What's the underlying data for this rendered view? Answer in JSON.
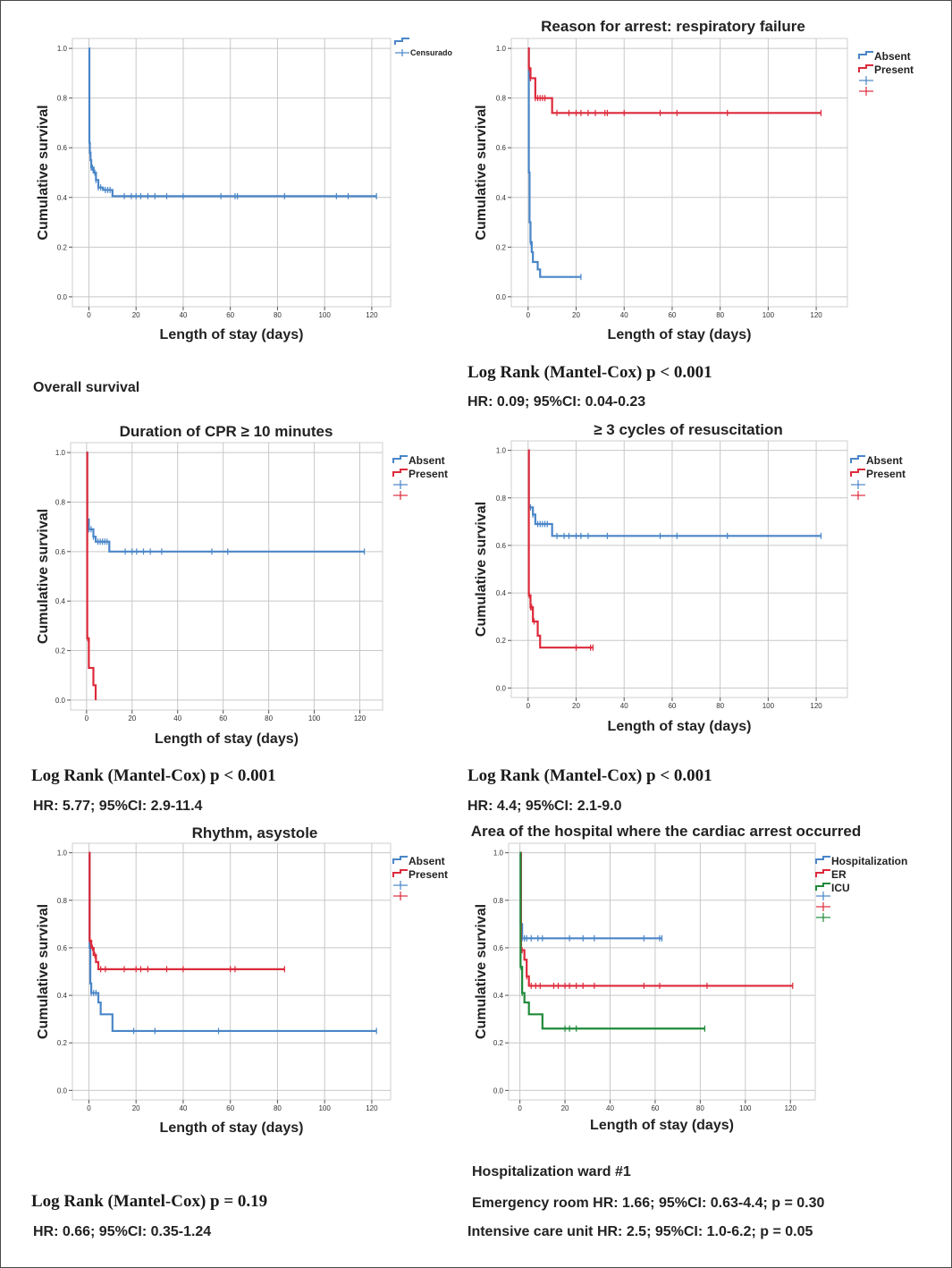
{
  "common": {
    "xlabel": "Length of stay (days)",
    "ylabel": "Cumulative survival",
    "colors": {
      "blue": "#4a86c8",
      "red": "#dd2a3b",
      "green": "#1f8a3a",
      "grid": "#c8c8c8",
      "axis": "#555555"
    }
  },
  "chart_data": [
    {
      "type": "line",
      "title": "",
      "xlabel": "Length of stay (days)",
      "ylabel": "Cumulative survival",
      "xlim": [
        -7,
        128
      ],
      "ylim": [
        -0.04,
        1.04
      ],
      "xticks": [
        "0",
        "20",
        "40",
        "60",
        "80",
        "100",
        "120"
      ],
      "yticks": [
        "0.0",
        "0.2",
        "0.4",
        "0.6",
        "0.8",
        "1.0"
      ],
      "legend": [
        "Censurado"
      ],
      "series": [
        {
          "name": "Overall",
          "color": "#4a86c8",
          "steps": [
            [
              0,
              1.0
            ],
            [
              0.2,
              0.62
            ],
            [
              0.4,
              0.58
            ],
            [
              0.7,
              0.55
            ],
            [
              1,
              0.52
            ],
            [
              2,
              0.5
            ],
            [
              3,
              0.47
            ],
            [
              4,
              0.44
            ],
            [
              6,
              0.43
            ],
            [
              10,
              0.405
            ],
            [
              122,
              0.405
            ]
          ],
          "censors": [
            0.5,
            1,
            1.5,
            2.5,
            3,
            4,
            5,
            7,
            8,
            9,
            15,
            18,
            20,
            22,
            25,
            28,
            33,
            40,
            56,
            62,
            63,
            83,
            105,
            110,
            122
          ]
        }
      ]
    },
    {
      "type": "line",
      "title": "Reason for arrest: respiratory failure",
      "xlabel": "Length of stay (days)",
      "ylabel": "Cumulative survival",
      "xlim": [
        -7,
        133
      ],
      "ylim": [
        -0.04,
        1.04
      ],
      "xticks": [
        "0",
        "20",
        "40",
        "60",
        "80",
        "100",
        "120"
      ],
      "yticks": [
        "0.0",
        "0.2",
        "0.4",
        "0.6",
        "0.8",
        "1.0"
      ],
      "legend": [
        "Absent",
        "Present"
      ],
      "series": [
        {
          "name": "Absent",
          "color": "#4a86c8",
          "steps": [
            [
              0,
              1.0
            ],
            [
              0.3,
              0.5
            ],
            [
              0.6,
              0.3
            ],
            [
              1,
              0.22
            ],
            [
              1.5,
              0.18
            ],
            [
              2,
              0.14
            ],
            [
              4,
              0.11
            ],
            [
              5,
              0.08
            ],
            [
              22,
              0.08
            ]
          ],
          "censors": [
            0.5,
            1,
            22
          ]
        },
        {
          "name": "Present",
          "color": "#dd2a3b",
          "steps": [
            [
              0,
              1.0
            ],
            [
              0.3,
              0.92
            ],
            [
              1,
              0.88
            ],
            [
              3,
              0.8
            ],
            [
              8,
              0.8
            ],
            [
              10,
              0.74
            ],
            [
              122,
              0.74
            ]
          ],
          "censors": [
            0.5,
            1,
            3,
            4,
            5,
            6,
            7,
            12,
            17,
            20,
            22,
            25,
            28,
            32,
            33,
            40,
            55,
            62,
            83,
            122
          ]
        }
      ],
      "log_rank": "Log Rank (Mantel-Cox) p < 0.001",
      "hr_text": "HR: 0.09; 95%CI: 0.04-0.23"
    },
    {
      "type": "line",
      "title": "Duration of CPR ≥ 10 minutes",
      "xlabel": "Length of stay (days)",
      "ylabel": "Cumulative survival",
      "xlim": [
        -7,
        130
      ],
      "ylim": [
        -0.04,
        1.04
      ],
      "xticks": [
        "0",
        "20",
        "40",
        "60",
        "80",
        "100",
        "120"
      ],
      "yticks": [
        "0.0",
        "0.2",
        "0.4",
        "0.6",
        "0.8",
        "1.0"
      ],
      "legend": [
        "Absent",
        "Present"
      ],
      "series": [
        {
          "name": "Absent",
          "color": "#4a86c8",
          "steps": [
            [
              0,
              1.0
            ],
            [
              0.3,
              0.73
            ],
            [
              1,
              0.69
            ],
            [
              3,
              0.66
            ],
            [
              4,
              0.64
            ],
            [
              10,
              0.6
            ],
            [
              122,
              0.6
            ]
          ],
          "censors": [
            1,
            2,
            3,
            5,
            6,
            7,
            8,
            9,
            17,
            20,
            22,
            25,
            28,
            33,
            55,
            62,
            122
          ]
        },
        {
          "name": "Present",
          "color": "#dd2a3b",
          "steps": [
            [
              0,
              1.0
            ],
            [
              0.3,
              0.25
            ],
            [
              1,
              0.13
            ],
            [
              3,
              0.06
            ],
            [
              4,
              0.0
            ]
          ],
          "censors": [
            0.5
          ]
        }
      ],
      "log_rank": "Log Rank (Mantel-Cox) p < 0.001",
      "hr_text": "HR: 5.77; 95%CI: 2.9-11.4"
    },
    {
      "type": "line",
      "title": "≥ 3 cycles of resuscitation",
      "xlabel": "Length of stay (days)",
      "ylabel": "Cumulative survival",
      "xlim": [
        -7,
        133
      ],
      "ylim": [
        -0.04,
        1.04
      ],
      "xticks": [
        "0",
        "20",
        "40",
        "60",
        "80",
        "100",
        "120"
      ],
      "yticks": [
        "0.0",
        "0.2",
        "0.4",
        "0.6",
        "0.8",
        "1.0"
      ],
      "legend": [
        "Absent",
        "Present"
      ],
      "series": [
        {
          "name": "Absent",
          "color": "#4a86c8",
          "steps": [
            [
              0,
              1.0
            ],
            [
              0.3,
              0.76
            ],
            [
              2,
              0.73
            ],
            [
              3,
              0.69
            ],
            [
              10,
              0.64
            ],
            [
              122,
              0.64
            ]
          ],
          "censors": [
            1,
            2,
            4,
            5,
            6,
            7,
            8,
            12,
            15,
            17,
            20,
            22,
            25,
            33,
            55,
            62,
            83,
            122
          ]
        },
        {
          "name": "Present",
          "color": "#dd2a3b",
          "steps": [
            [
              0,
              1.0
            ],
            [
              0.3,
              0.39
            ],
            [
              1,
              0.34
            ],
            [
              2,
              0.28
            ],
            [
              4,
              0.22
            ],
            [
              5,
              0.17
            ],
            [
              27,
              0.17
            ]
          ],
          "censors": [
            0.5,
            1,
            1.5,
            2.5,
            20,
            26,
            27
          ]
        }
      ],
      "log_rank": "Log Rank (Mantel-Cox) p < 0.001",
      "hr_text": "HR: 4.4; 95%CI: 2.1-9.0"
    },
    {
      "type": "line",
      "title": "Rhythm, asystole",
      "xlabel": "Length of stay (days)",
      "ylabel": "Cumulative survival",
      "xlim": [
        -7,
        128
      ],
      "ylim": [
        -0.04,
        1.04
      ],
      "xticks": [
        "0",
        "20",
        "40",
        "60",
        "80",
        "100",
        "120"
      ],
      "yticks": [
        "0.0",
        "0.2",
        "0.4",
        "0.6",
        "0.8",
        "1.0"
      ],
      "legend": [
        "Absent",
        "Present"
      ],
      "series": [
        {
          "name": "Absent",
          "color": "#4a86c8",
          "steps": [
            [
              0,
              1.0
            ],
            [
              0.3,
              0.6
            ],
            [
              0.6,
              0.45
            ],
            [
              1,
              0.41
            ],
            [
              4,
              0.37
            ],
            [
              5,
              0.32
            ],
            [
              10,
              0.25
            ],
            [
              122,
              0.25
            ]
          ],
          "censors": [
            1,
            2,
            3,
            19,
            28,
            55,
            122
          ]
        },
        {
          "name": "Present",
          "color": "#dd2a3b",
          "steps": [
            [
              0,
              1.0
            ],
            [
              0.3,
              0.63
            ],
            [
              1,
              0.6
            ],
            [
              2,
              0.57
            ],
            [
              3,
              0.54
            ],
            [
              4,
              0.51
            ],
            [
              83,
              0.51
            ]
          ],
          "censors": [
            0.5,
            1.5,
            2.5,
            5,
            7,
            15,
            20,
            22,
            25,
            33,
            40,
            60,
            62,
            83
          ]
        }
      ],
      "log_rank": "Log Rank (Mantel-Cox) p = 0.19",
      "hr_text": "HR: 0.66; 95%CI: 0.35-1.24"
    },
    {
      "type": "line",
      "title": "Area of the hospital where the cardiac arrest occurred",
      "xlabel": "Length of stay (days)",
      "ylabel": "Cumulative survival",
      "xlim": [
        -5,
        131
      ],
      "ylim": [
        -0.04,
        1.04
      ],
      "xticks": [
        "0",
        "20",
        "40",
        "60",
        "80",
        "100",
        "120"
      ],
      "yticks": [
        "0.0",
        "0.2",
        "0.4",
        "0.6",
        "0.8",
        "1.0"
      ],
      "legend": [
        "Hospitalization",
        "ER",
        "ICU"
      ],
      "series": [
        {
          "name": "Hospitalization",
          "color": "#4a86c8",
          "steps": [
            [
              0,
              1.0
            ],
            [
              0.3,
              0.7
            ],
            [
              1,
              0.64
            ],
            [
              63,
              0.64
            ]
          ],
          "censors": [
            1,
            2,
            3,
            5,
            8,
            10,
            22,
            28,
            33,
            55,
            62,
            63
          ]
        },
        {
          "name": "ER",
          "color": "#dd2a3b",
          "steps": [
            [
              0,
              1.0
            ],
            [
              0.5,
              0.59
            ],
            [
              2,
              0.55
            ],
            [
              3,
              0.48
            ],
            [
              4,
              0.44
            ],
            [
              121,
              0.44
            ]
          ],
          "censors": [
            1,
            3,
            5,
            7,
            9,
            15,
            17,
            20,
            22,
            25,
            28,
            33,
            55,
            62,
            83,
            121
          ]
        },
        {
          "name": "ICU",
          "color": "#1f8a3a",
          "steps": [
            [
              0,
              1.0
            ],
            [
              0.3,
              0.52
            ],
            [
              1,
              0.41
            ],
            [
              2,
              0.37
            ],
            [
              4,
              0.32
            ],
            [
              10,
              0.26
            ],
            [
              82,
              0.26
            ]
          ],
          "censors": [
            0.5,
            1,
            20,
            22,
            25,
            82
          ]
        }
      ],
      "notes": [
        "Hospitalization ward #1",
        "Emergency room HR: 1.66; 95%CI: 0.63-4.4; p = 0.30",
        "Intensive care unit HR: 2.5; 95%CI: 1.0-6.2; p = 0.05"
      ]
    }
  ],
  "captions": {
    "overall": "Overall survival"
  }
}
